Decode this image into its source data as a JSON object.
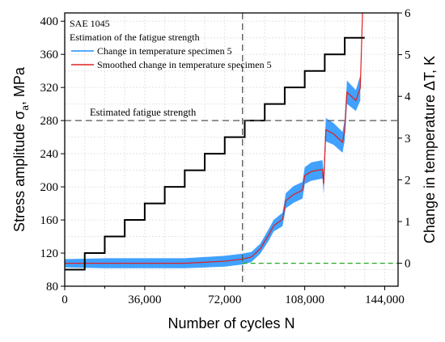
{
  "chart_data": {
    "type": "line",
    "title": "",
    "xlabel": "Number of cycles N",
    "ylabel_left": "Stress amplitude σa, MPa",
    "ylabel_left_parts": {
      "main": "Stress amplitude σ",
      "sub": "a",
      "tail": ", MPa"
    },
    "ylabel_right": "Change in temperature ΔT, K",
    "xlim": [
      0,
      150000
    ],
    "ylim_left": [
      80,
      410
    ],
    "ylim_right": [
      -0.55,
      6
    ],
    "x_ticks": [
      0,
      36000,
      72000,
      108000,
      144000
    ],
    "x_tick_labels": [
      "0",
      "36,000",
      "72,000",
      "108,000",
      "144,000"
    ],
    "y_left_ticks": [
      80,
      120,
      160,
      200,
      240,
      280,
      320,
      360,
      400
    ],
    "y_left_tick_labels": [
      "80",
      "120",
      "160",
      "200",
      "240",
      "280",
      "320",
      "360",
      "400"
    ],
    "y_right_ticks": [
      0,
      1,
      2,
      3,
      4,
      5,
      6
    ],
    "y_right_tick_labels": [
      "0",
      "1",
      "2",
      "3",
      "4",
      "5",
      "6"
    ],
    "grid": true,
    "annotations": {
      "material": "SAE 1045",
      "method": "Estimation of the fatigue strength",
      "fatigue_label": "Estimated fatigue strength"
    },
    "fatigue_strength_mpa": 280,
    "fatigue_cycles": 80000,
    "baseline_temperature_k": 0,
    "series": [
      {
        "name": "Stress amplitude",
        "axis": "left",
        "style": "step",
        "color": "#000000",
        "x": [
          0,
          9000,
          18000,
          27000,
          36000,
          45000,
          54000,
          63000,
          72000,
          81000,
          90000,
          99000,
          108000,
          117000,
          126000,
          135000
        ],
        "y": [
          100,
          120,
          140,
          160,
          180,
          200,
          220,
          240,
          260,
          280,
          300,
          320,
          340,
          360,
          380,
          380
        ]
      },
      {
        "name": "Change in temperature specimen 5",
        "axis": "right",
        "color": "#1e90ff",
        "x": [
          0,
          18000,
          36000,
          54000,
          72000,
          80000,
          84000,
          88000,
          92000,
          94000,
          98000,
          99500,
          103000,
          107000,
          108000,
          111000,
          116000,
          116500,
          117500,
          121000,
          125000,
          126000,
          127000,
          131000,
          133000
        ],
        "y": [
          0,
          0,
          0,
          0,
          0.05,
          0.1,
          0.15,
          0.35,
          0.7,
          0.9,
          1.05,
          1.5,
          1.65,
          1.75,
          2.1,
          2.2,
          2.25,
          1.9,
          3.2,
          3.1,
          2.9,
          3.2,
          4.1,
          3.9,
          4.2
        ],
        "band": [
          0.1,
          0.12,
          0.12,
          0.12,
          0.13,
          0.13,
          0.12,
          0.12,
          0.14,
          0.14,
          0.16,
          0.18,
          0.2,
          0.2,
          0.2,
          0.22,
          0.22,
          0.25,
          0.28,
          0.26,
          0.25,
          0.25,
          0.28,
          0.25,
          0.3
        ]
      },
      {
        "name": "Smoothed change in temperature specimen 5",
        "axis": "right",
        "color": "#e02020",
        "x": [
          0,
          18000,
          36000,
          54000,
          72000,
          80000,
          84000,
          88000,
          92000,
          94000,
          98000,
          99500,
          103000,
          107000,
          108000,
          111000,
          116000,
          116500,
          117500,
          121000,
          125000,
          126000,
          127000,
          131000,
          133000,
          134000
        ],
        "y": [
          0,
          0,
          0,
          0,
          0.05,
          0.1,
          0.15,
          0.35,
          0.7,
          0.9,
          1.05,
          1.5,
          1.65,
          1.75,
          2.1,
          2.2,
          2.25,
          1.9,
          3.2,
          3.1,
          2.9,
          3.2,
          4.1,
          3.9,
          4.2,
          6.0
        ]
      }
    ],
    "reference_lines": {
      "fatigue_strength_h": {
        "y": 280,
        "color": "#555555",
        "style": "dashed"
      },
      "fatigue_cycles_v": {
        "x": 80000,
        "color": "#555555",
        "style": "dashed"
      },
      "baseline_h": {
        "y_right": 0,
        "color": "#22aa22",
        "style": "dashed"
      }
    },
    "legend_placement": "top-left"
  }
}
